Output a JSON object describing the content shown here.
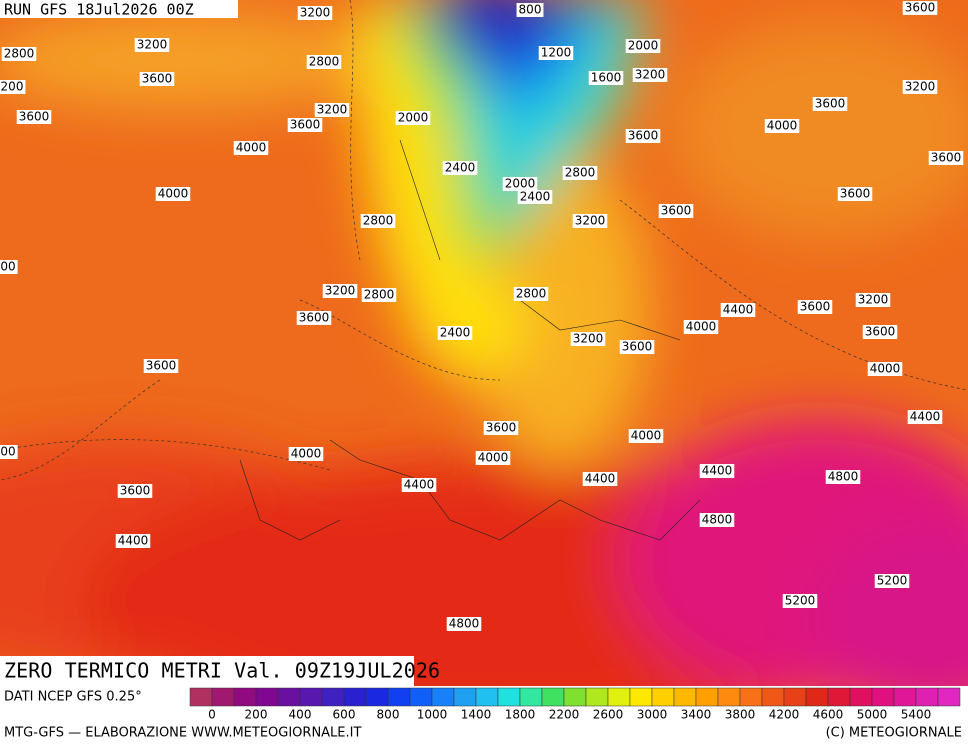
{
  "header": {
    "run": "RUN GFS 18Jul2026 00Z"
  },
  "title": "ZERO TERMICO METRI Val. 09Z19JUL2026",
  "source": "DATI NCEP GFS 0.25°",
  "footer": {
    "left": "MTG-GFS — ELABORAZIONE WWW.METEOGIORNALE.IT",
    "right": "(C) METEOGIORNALE"
  },
  "colorbar": {
    "labels": [
      0,
      200,
      400,
      600,
      800,
      1000,
      1400,
      1800,
      2200,
      2600,
      3000,
      3400,
      3800,
      4200,
      4600,
      5000,
      5400
    ]
  },
  "contour_labels": [
    3200,
    800,
    3600,
    3200,
    2800,
    2800,
    1200,
    2000,
    3200,
    1600,
    3600,
    200,
    3200,
    3600,
    2000,
    3600,
    3600,
    3200,
    4000,
    3600,
    4000,
    3600,
    2400,
    2800,
    2000,
    4000,
    2400,
    3600,
    3600,
    2800,
    3200,
    2800,
    3200,
    2800,
    3600,
    4400,
    3600,
    3200,
    4000,
    2400,
    3200,
    3600,
    3600,
    3600,
    4000,
    4400,
    3600,
    4000,
    4000,
    4000,
    4400,
    4800,
    4400,
    4400,
    3600,
    4800,
    4400,
    5200,
    5200,
    4800,
    "00",
    "00"
  ]
}
